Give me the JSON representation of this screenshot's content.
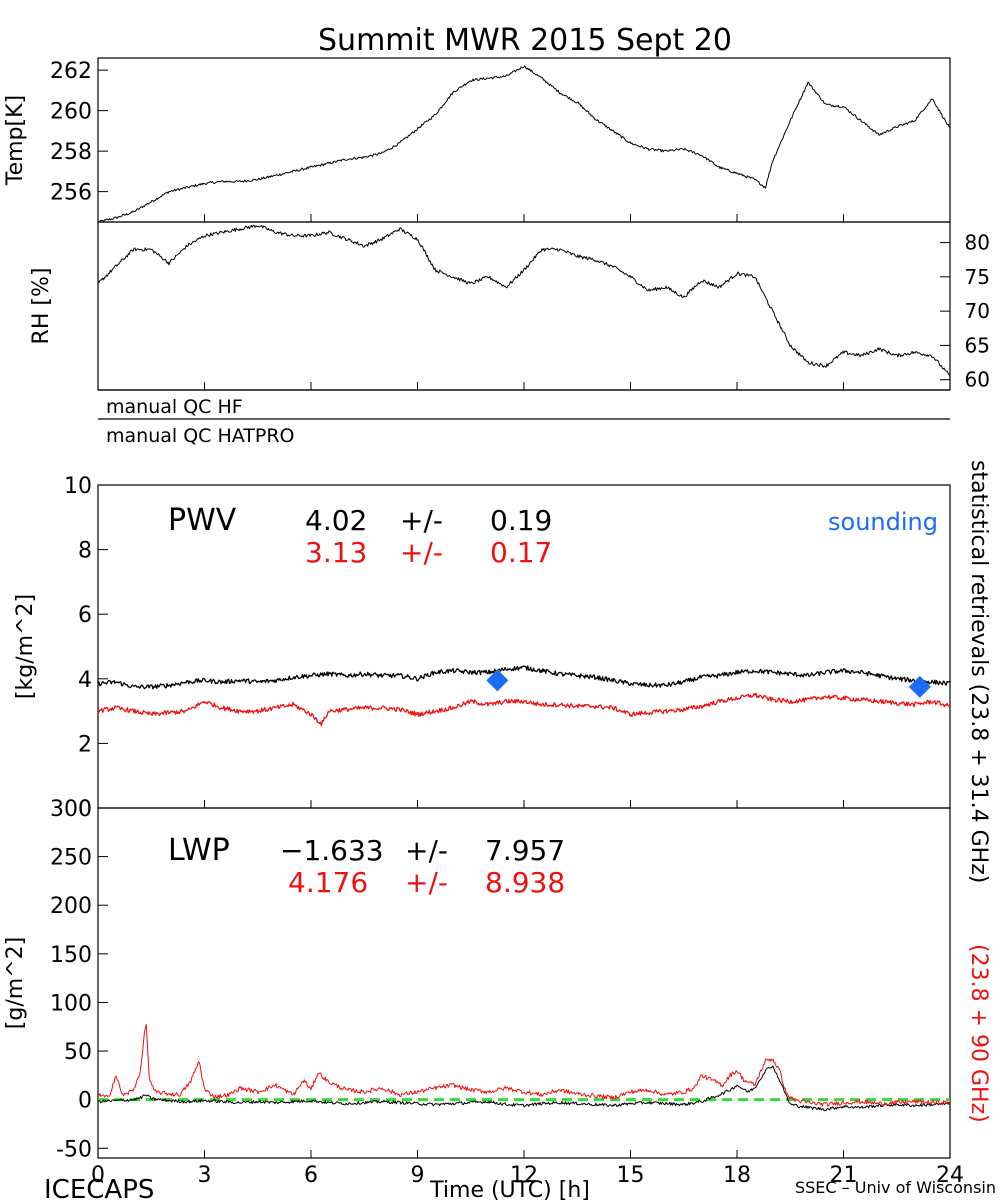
{
  "title": "Summit MWR 2015 Sept 20",
  "footer": {
    "left": "ICECAPS",
    "center": "Time (UTC) [h]",
    "right": "SSEC – Univ of Wisconsin"
  },
  "colors": {
    "primary": "#000000",
    "secondary": "#ee1111",
    "sounding": "#1a6ef5",
    "zero_line": "#33dd33"
  },
  "side_labels": {
    "black": "statistical retrievals (23.8 + 31.4 GHz)",
    "red": "(23.8 + 90 GHz)"
  },
  "qc": {
    "hf": "manual QC HF",
    "hatpro": "manual QC HATPRO"
  },
  "chart_data": [
    {
      "id": "temp",
      "type": "line",
      "ylabel": "Temp[K]",
      "xlim": [
        0,
        24
      ],
      "ylim": [
        254.5,
        262.6
      ],
      "yticks": [
        256,
        258,
        260,
        262
      ],
      "series": [
        {
          "color": "black",
          "x": [
            0,
            0.5,
            1,
            1.5,
            2,
            2.5,
            3,
            3.5,
            4,
            4.5,
            5,
            5.5,
            6,
            6.5,
            7,
            7.5,
            8,
            8.5,
            9,
            9.5,
            10,
            10.5,
            11,
            11.5,
            12,
            12.5,
            13,
            13.5,
            14,
            14.5,
            15,
            15.5,
            16,
            16.5,
            17,
            17.5,
            18,
            18.5,
            18.8,
            19,
            19.5,
            20,
            20.5,
            21,
            21.5,
            22,
            22.5,
            23,
            23.5,
            24
          ],
          "y": [
            254.5,
            254.7,
            255.0,
            255.5,
            256.0,
            256.2,
            256.4,
            256.5,
            256.5,
            256.6,
            256.8,
            257.0,
            257.2,
            257.4,
            257.6,
            257.7,
            257.9,
            258.4,
            259.1,
            259.8,
            260.9,
            261.5,
            261.6,
            261.7,
            262.2,
            261.6,
            260.9,
            260.4,
            259.6,
            259.0,
            258.4,
            258.1,
            258.0,
            258.1,
            257.8,
            257.2,
            256.9,
            256.6,
            256.2,
            257.5,
            259.5,
            261.4,
            260.3,
            260.2,
            259.5,
            258.8,
            259.2,
            259.5,
            260.6,
            259.1
          ]
        }
      ]
    },
    {
      "id": "rh",
      "type": "line",
      "ylabel": "RH [%]",
      "xlim": [
        0,
        24
      ],
      "ylim": [
        58.5,
        83
      ],
      "yticks": [
        60,
        65,
        70,
        75,
        80
      ],
      "series": [
        {
          "color": "black",
          "x": [
            0,
            0.5,
            1,
            1.5,
            2,
            2.5,
            3,
            3.5,
            4,
            4.5,
            5,
            5.5,
            6,
            6.5,
            7,
            7.5,
            8,
            8.5,
            9,
            9.5,
            10,
            10.5,
            11,
            11.5,
            12,
            12.5,
            13,
            13.5,
            14,
            14.5,
            15,
            15.5,
            16,
            16.5,
            17,
            17.5,
            18,
            18.5,
            19,
            19.5,
            20,
            20.5,
            21,
            21.5,
            22,
            22.5,
            23,
            23.5,
            24
          ],
          "y": [
            74.0,
            76.5,
            79.0,
            79.0,
            77.0,
            79.5,
            81.0,
            81.5,
            82.0,
            82.5,
            81.5,
            81.0,
            81.0,
            81.5,
            80.5,
            79.5,
            80.5,
            82.0,
            80.5,
            76.0,
            75.0,
            74.0,
            75.0,
            73.5,
            76.0,
            79.0,
            79.0,
            78.0,
            77.5,
            76.5,
            75.0,
            73.0,
            73.5,
            72.0,
            74.5,
            73.5,
            75.5,
            75.0,
            70.0,
            65.0,
            62.5,
            62.0,
            64.0,
            63.5,
            64.5,
            63.5,
            64.0,
            63.5,
            60.5
          ]
        }
      ]
    },
    {
      "id": "pwv",
      "type": "line",
      "label": "PWV",
      "ylabel": "[kg/m^2]",
      "xlim": [
        0,
        24
      ],
      "ylim": [
        0,
        10
      ],
      "yticks": [
        0,
        2,
        4,
        6,
        8,
        10
      ],
      "stats": [
        {
          "color": "black",
          "mean": "4.02",
          "pm": "+/-",
          "sd": "0.19"
        },
        {
          "color": "red",
          "mean": "3.13",
          "pm": "+/-",
          "sd": "0.17"
        }
      ],
      "legend": "sounding",
      "sounding": {
        "x": [
          11.25,
          23.15
        ],
        "y": [
          3.95,
          3.75
        ]
      },
      "series": [
        {
          "color": "black",
          "x": [
            0,
            0.5,
            1,
            1.5,
            2,
            2.5,
            3,
            3.5,
            4,
            4.5,
            5,
            5.5,
            6,
            6.5,
            7,
            7.5,
            8,
            8.5,
            9,
            9.5,
            10,
            10.5,
            11,
            11.5,
            12,
            12.5,
            13,
            13.5,
            14,
            14.5,
            15,
            15.5,
            16,
            16.5,
            17,
            17.5,
            18,
            18.5,
            19,
            19.5,
            20,
            20.5,
            21,
            21.5,
            22,
            22.5,
            23,
            23.5,
            24
          ],
          "y": [
            3.85,
            3.9,
            3.75,
            3.75,
            3.8,
            3.9,
            3.95,
            3.9,
            3.95,
            3.9,
            3.95,
            4.05,
            4.1,
            4.15,
            4.1,
            4.15,
            4.1,
            4.1,
            4.0,
            4.2,
            4.25,
            4.2,
            4.2,
            4.3,
            4.35,
            4.25,
            4.15,
            4.1,
            4.05,
            3.95,
            3.85,
            3.8,
            3.8,
            3.9,
            4.05,
            4.1,
            4.2,
            4.25,
            4.2,
            4.15,
            4.1,
            4.2,
            4.25,
            4.2,
            4.1,
            4.0,
            3.95,
            3.9,
            3.85
          ]
        },
        {
          "color": "red",
          "x": [
            0,
            0.5,
            1,
            1.5,
            2,
            2.5,
            3,
            3.5,
            4,
            4.5,
            5,
            5.5,
            6,
            6.3,
            6.5,
            7,
            7.5,
            8,
            8.5,
            9,
            9.5,
            10,
            10.5,
            11,
            11.5,
            12,
            12.5,
            13,
            13.5,
            14,
            14.5,
            15,
            15.5,
            16,
            16.5,
            17,
            17.5,
            18,
            18.5,
            19,
            19.5,
            20,
            20.5,
            21,
            21.5,
            22,
            22.5,
            23,
            23.5,
            24
          ],
          "y": [
            3.0,
            3.1,
            3.0,
            2.9,
            2.95,
            3.0,
            3.3,
            3.1,
            3.0,
            3.0,
            3.1,
            3.2,
            2.9,
            2.6,
            3.0,
            3.05,
            3.1,
            3.1,
            3.05,
            2.9,
            3.0,
            3.1,
            3.3,
            3.2,
            3.3,
            3.3,
            3.2,
            3.2,
            3.15,
            3.15,
            3.1,
            2.9,
            2.95,
            3.0,
            3.05,
            3.15,
            3.3,
            3.4,
            3.5,
            3.35,
            3.3,
            3.35,
            3.45,
            3.4,
            3.35,
            3.3,
            3.25,
            3.2,
            3.3,
            3.15
          ]
        }
      ]
    },
    {
      "id": "lwp",
      "type": "line",
      "label": "LWP",
      "ylabel": "[g/m^2]",
      "xlabel": "Time (UTC) [h]",
      "xlim": [
        0,
        24
      ],
      "xticks": [
        0,
        3,
        6,
        9,
        12,
        15,
        18,
        21,
        24
      ],
      "ylim": [
        -60,
        300
      ],
      "yticks": [
        -50,
        0,
        50,
        100,
        150,
        200,
        250,
        300
      ],
      "stats": [
        {
          "color": "black",
          "mean": "−1.633",
          "pm": "+/-",
          "sd": "7.957"
        },
        {
          "color": "red",
          "mean": "4.176",
          "pm": "+/-",
          "sd": "8.938"
        }
      ],
      "zero_line": 0,
      "series": [
        {
          "color": "black",
          "x": [
            0,
            0.5,
            1,
            1.2,
            1.35,
            1.5,
            2,
            2.5,
            3,
            3.5,
            4,
            4.5,
            5,
            5.5,
            6,
            6.5,
            7,
            7.5,
            8,
            8.5,
            9,
            9.5,
            10,
            10.5,
            11,
            11.5,
            12,
            12.5,
            13,
            13.5,
            14,
            14.5,
            15,
            15.5,
            16,
            16.5,
            17,
            17.5,
            17.8,
            18,
            18.3,
            18.5,
            18.8,
            19,
            19.2,
            19.5,
            20,
            20.5,
            21,
            21.5,
            22,
            22.5,
            23,
            23.5,
            24
          ],
          "y": [
            -2,
            -1,
            0,
            2,
            5,
            1,
            -1,
            -2,
            -1,
            -2,
            -3,
            -2,
            -3,
            -2,
            -1,
            -3,
            -4,
            -3,
            -2,
            -3,
            -4,
            -5,
            -4,
            -3,
            -2,
            -5,
            -6,
            -4,
            -3,
            -4,
            -5,
            -6,
            -4,
            -3,
            -4,
            -5,
            -2,
            5,
            10,
            15,
            8,
            12,
            30,
            35,
            20,
            -5,
            -8,
            -10,
            -7,
            -8,
            -6,
            -5,
            -6,
            -5,
            -4
          ]
        },
        {
          "color": "red",
          "x": [
            0,
            0.3,
            0.5,
            0.7,
            1,
            1.2,
            1.35,
            1.45,
            1.6,
            2,
            2.3,
            2.6,
            2.85,
            3,
            3.3,
            3.7,
            4,
            4.5,
            5,
            5.5,
            5.8,
            6,
            6.2,
            6.5,
            7,
            7.5,
            8,
            8.5,
            9,
            9.5,
            10,
            10.5,
            11,
            11.5,
            12,
            12.5,
            13,
            13.5,
            14,
            14.5,
            15,
            15.5,
            16,
            16.5,
            16.8,
            17,
            17.3,
            17.6,
            17.8,
            18,
            18.2,
            18.5,
            18.8,
            19,
            19.2,
            19.4,
            19.6,
            20,
            20.5,
            21,
            21.5,
            22,
            22.5,
            23,
            23.5,
            24
          ],
          "y": [
            5,
            2,
            25,
            4,
            10,
            30,
            82,
            20,
            8,
            6,
            5,
            18,
            40,
            10,
            3,
            5,
            12,
            8,
            15,
            5,
            20,
            10,
            28,
            18,
            10,
            8,
            12,
            5,
            8,
            12,
            15,
            10,
            8,
            12,
            8,
            5,
            10,
            6,
            4,
            2,
            8,
            10,
            5,
            8,
            12,
            25,
            20,
            15,
            25,
            30,
            20,
            15,
            40,
            42,
            30,
            5,
            0,
            -3,
            -5,
            -3,
            -2,
            -4,
            -3,
            -2,
            -3,
            -3
          ]
        }
      ]
    }
  ]
}
